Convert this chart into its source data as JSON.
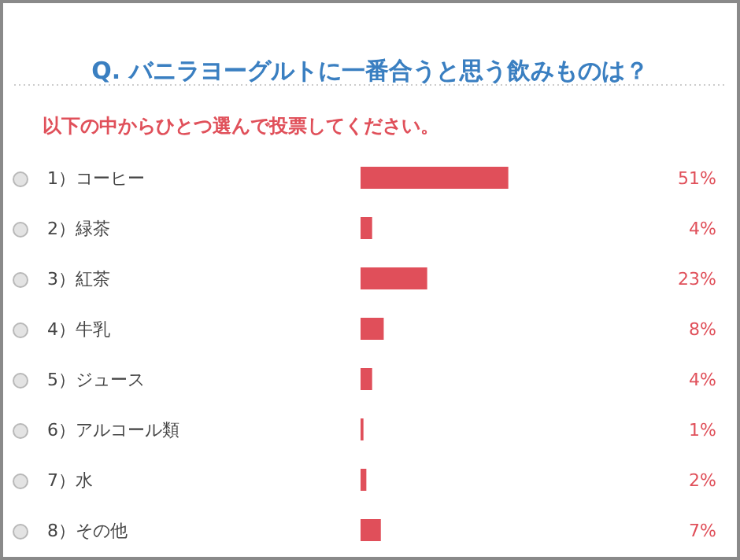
{
  "chart_data": {
    "type": "bar",
    "orientation": "horizontal",
    "title": "Q. バニラヨーグルトに一番合うと思う飲みものは？",
    "subtitle": "以下の中からひとつ選んで投票してください。",
    "categories": [
      "1）コーヒー",
      "2）緑茶",
      "3）紅茶",
      "4）牛乳",
      "5）ジュース",
      "6）アルコール類",
      "7）水",
      "8）その他"
    ],
    "values": [
      51,
      4,
      23,
      8,
      4,
      1,
      2,
      7
    ],
    "value_labels": [
      "51%",
      "4%",
      "23%",
      "8%",
      "4%",
      "1%",
      "2%",
      "7%"
    ],
    "color": "#e04f5a"
  }
}
